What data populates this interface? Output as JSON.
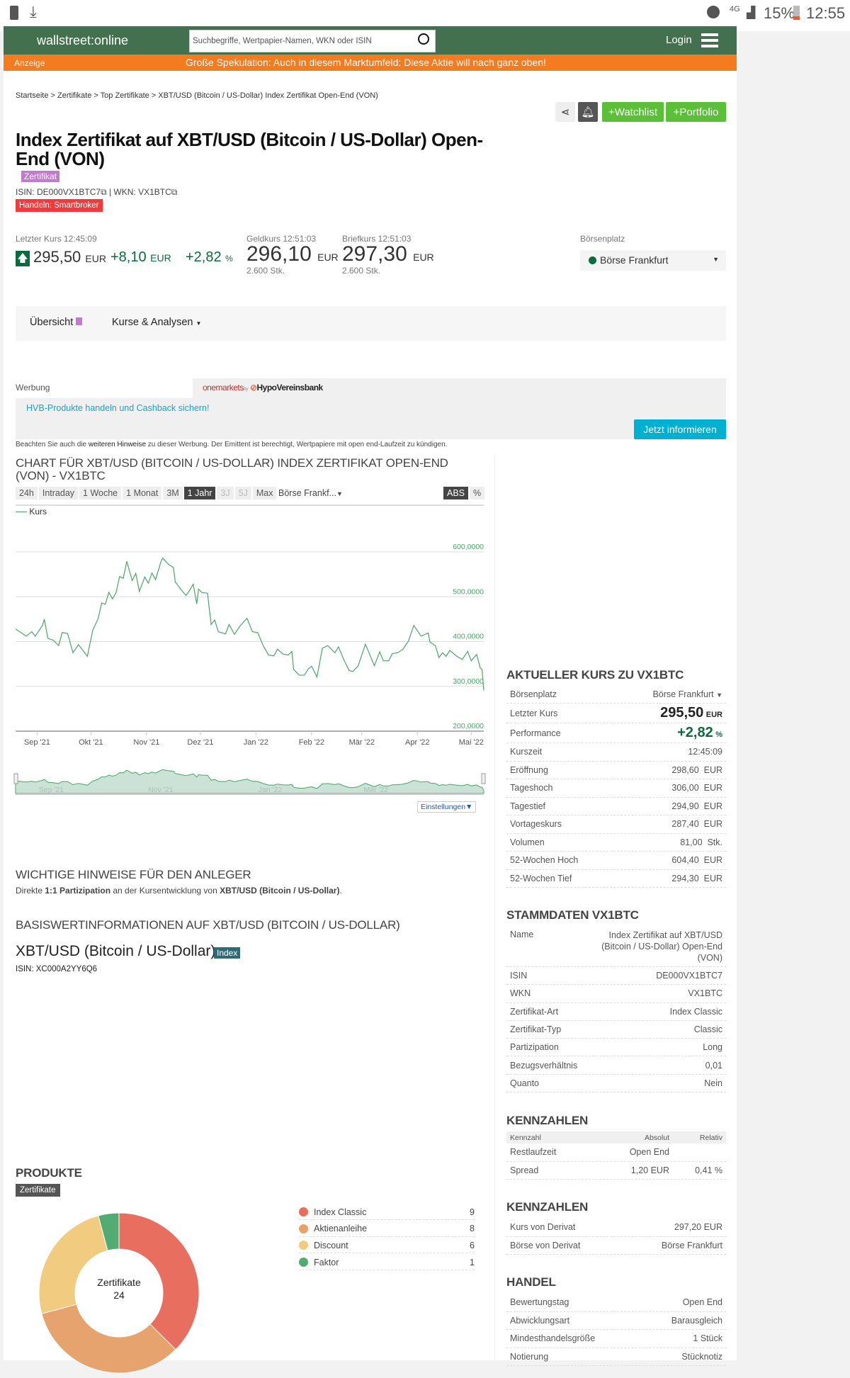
{
  "status_bar": {
    "network": "4G",
    "battery": "15%",
    "time": "12:55"
  },
  "header": {
    "logo": "wallstreet:online",
    "search_placeholder": "Suchbegriffe, Wertpapier-Namen, WKN oder ISIN",
    "login": "Login"
  },
  "promo": {
    "label": "Anzeige",
    "text": "Große Spekulation: Auch in diesem Marktumfeld: Diese Aktie will nach ganz oben!"
  },
  "breadcrumb": [
    "Startseite",
    "Zertifikate",
    "Top Zertifikate",
    "XBT/USD (Bitcoin / US-Dollar) Index Zertifikat Open-End (VON)"
  ],
  "actions": {
    "watchlist": "+Watchlist",
    "portfolio": "+Portfolio"
  },
  "title": "Index Zertifikat auf XBT/USD (Bitcoin / US-Dollar) Open-End (VON)",
  "type_badge": "Zertifikat",
  "isin_line": {
    "isin": "ISIN: DE000VX1BTC7",
    "wkn": "| WKN: VX1BTC"
  },
  "trade_badge": "Handeln: Smartbroker",
  "quote": {
    "last_label": "Letzter Kurs 12:45:09",
    "last": "295,50",
    "change": "+8,10",
    "change_pct": "+2,82",
    "currency": "EUR",
    "pct": "%",
    "bid_label": "Geldkurs 12:51:03",
    "bid": "296,10",
    "bid_size": "2.600 Stk.",
    "ask_label": "Briefkurs 12:51:03",
    "ask": "297,30",
    "ask_size": "2.600 Stk.",
    "exchange_label": "Börsenplatz",
    "exchange": "Börse Frankfurt"
  },
  "colors": {
    "header": "#43704f",
    "promo": "#f47b20",
    "positive": "#0a6b3c",
    "button_green": "#5cbf3a",
    "ad_button": "#00b0d0"
  },
  "nav": {
    "overview": "Übersicht",
    "analysis": "Kurse & Analysen"
  },
  "ad": {
    "label": "Werbung",
    "brand1": "onemarkets",
    "brand1_by": "by",
    "brand2": "HypoVereinsbank",
    "link": "HVB-Produkte handeln und Cashback sichern!",
    "button": "Jetzt informieren",
    "disclaimer_pre": "Beachten Sie auch die ",
    "disclaimer_link": "weiteren Hinweise",
    "disclaimer_post": " zu dieser Werbung. Der Emittent ist berechtigt, Wertpapiere mit open end-Laufzeit zu kündigen."
  },
  "chart_section": {
    "title": "CHART FÜR XBT/USD (BITCOIN / US-DOLLAR) INDEX ZERTIFIKAT OPEN-END (VON) - VX1BTC",
    "ranges": [
      "24h",
      "Intraday",
      "1 Woche",
      "1 Monat",
      "3M",
      "1 Jahr",
      "3J",
      "5J",
      "Max"
    ],
    "active_range": "1 Jahr",
    "exchange": "Börse Frankf...",
    "modes": [
      "ABS",
      "%"
    ],
    "settings": "Einstellungen"
  },
  "chart_data": {
    "type": "line",
    "legend": [
      "Kurs"
    ],
    "ylim": [
      200,
      600
    ],
    "yticks": [
      "600,0000",
      "500,0000",
      "400,0000",
      "300,0000",
      "200,0000"
    ],
    "ytick_values": [
      600,
      500,
      400,
      300,
      200
    ],
    "xlim": [
      "2021-08-20",
      "2022-05-08"
    ],
    "xticks": [
      [
        "2021-09-01",
        "Sep '21"
      ],
      [
        "2021-10-01",
        "Okt '21"
      ],
      [
        "2021-11-01",
        "Nov '21"
      ],
      [
        "2021-12-01",
        "Dez '21"
      ],
      [
        "2022-01-01",
        "Jan '22"
      ],
      [
        "2022-02-01",
        "Feb '22"
      ],
      [
        "2022-03-01",
        "Mär '22"
      ],
      [
        "2022-04-01",
        "Apr '22"
      ],
      [
        "2022-05-01",
        "Mai '22"
      ]
    ],
    "navigator_ticks": [
      [
        "2021-09-01",
        "Sep '21"
      ],
      [
        "2021-11-01",
        "Nov '21"
      ],
      [
        "2022-01-01",
        "Jan '22"
      ],
      [
        "2022-03-01",
        "Mär '22"
      ]
    ],
    "grid": true,
    "series": [
      {
        "name": "Kurs",
        "points": [
          [
            "2021-08-20",
            428
          ],
          [
            "2021-08-23",
            420
          ],
          [
            "2021-08-26",
            412
          ],
          [
            "2021-08-29",
            422
          ],
          [
            "2021-08-31",
            412
          ],
          [
            "2021-09-04",
            436
          ],
          [
            "2021-09-05",
            450
          ],
          [
            "2021-09-07",
            407
          ],
          [
            "2021-09-10",
            403
          ],
          [
            "2021-09-13",
            391
          ],
          [
            "2021-09-15",
            420
          ],
          [
            "2021-09-18",
            418
          ],
          [
            "2021-09-21",
            375
          ],
          [
            "2021-09-24",
            393
          ],
          [
            "2021-09-27",
            378
          ],
          [
            "2021-09-29",
            367
          ],
          [
            "2021-10-02",
            425
          ],
          [
            "2021-10-05",
            451
          ],
          [
            "2021-10-07",
            486
          ],
          [
            "2021-10-09",
            483
          ],
          [
            "2021-10-11",
            510
          ],
          [
            "2021-10-13",
            495
          ],
          [
            "2021-10-15",
            509
          ],
          [
            "2021-10-17",
            545
          ],
          [
            "2021-10-19",
            541
          ],
          [
            "2021-10-21",
            579
          ],
          [
            "2021-10-24",
            536
          ],
          [
            "2021-10-26",
            552
          ],
          [
            "2021-10-28",
            512
          ],
          [
            "2021-10-31",
            544
          ],
          [
            "2021-11-02",
            530
          ],
          [
            "2021-11-04",
            553
          ],
          [
            "2021-11-06",
            538
          ],
          [
            "2021-11-09",
            578
          ],
          [
            "2021-11-10",
            586
          ],
          [
            "2021-11-13",
            573
          ],
          [
            "2021-11-16",
            565
          ],
          [
            "2021-11-17",
            533
          ],
          [
            "2021-11-20",
            517
          ],
          [
            "2021-11-23",
            503
          ],
          [
            "2021-11-25",
            514
          ],
          [
            "2021-11-27",
            528
          ],
          [
            "2021-11-29",
            484
          ],
          [
            "2021-11-30",
            517
          ],
          [
            "2021-12-02",
            509
          ],
          [
            "2021-12-05",
            508
          ],
          [
            "2021-12-07",
            438
          ],
          [
            "2021-12-09",
            448
          ],
          [
            "2021-12-11",
            422
          ],
          [
            "2021-12-15",
            417
          ],
          [
            "2021-12-17",
            438
          ],
          [
            "2021-12-20",
            416
          ],
          [
            "2021-12-23",
            434
          ],
          [
            "2021-12-27",
            452
          ],
          [
            "2021-12-30",
            422
          ],
          [
            "2022-01-02",
            420
          ],
          [
            "2022-01-05",
            391
          ],
          [
            "2022-01-08",
            370
          ],
          [
            "2022-01-11",
            368
          ],
          [
            "2022-01-13",
            383
          ],
          [
            "2022-01-16",
            372
          ],
          [
            "2022-01-19",
            370
          ],
          [
            "2022-01-21",
            378
          ],
          [
            "2022-01-22",
            338
          ],
          [
            "2022-01-25",
            325
          ],
          [
            "2022-01-28",
            325
          ],
          [
            "2022-01-30",
            338
          ],
          [
            "2022-02-01",
            345
          ],
          [
            "2022-02-04",
            321
          ],
          [
            "2022-02-07",
            385
          ],
          [
            "2022-02-10",
            391
          ],
          [
            "2022-02-14",
            375
          ],
          [
            "2022-02-16",
            388
          ],
          [
            "2022-02-19",
            359
          ],
          [
            "2022-02-22",
            335
          ],
          [
            "2022-02-24",
            333
          ],
          [
            "2022-02-27",
            346
          ],
          [
            "2022-03-03",
            394
          ],
          [
            "2022-03-05",
            375
          ],
          [
            "2022-03-08",
            346
          ],
          [
            "2022-03-11",
            377
          ],
          [
            "2022-03-13",
            357
          ],
          [
            "2022-03-16",
            357
          ],
          [
            "2022-03-18",
            373
          ],
          [
            "2022-03-21",
            375
          ],
          [
            "2022-03-24",
            383
          ],
          [
            "2022-03-27",
            401
          ],
          [
            "2022-03-30",
            436
          ],
          [
            "2022-04-03",
            412
          ],
          [
            "2022-04-07",
            419
          ],
          [
            "2022-04-08",
            399
          ],
          [
            "2022-04-11",
            391
          ],
          [
            "2022-04-13",
            364
          ],
          [
            "2022-04-15",
            375
          ],
          [
            "2022-04-17",
            367
          ],
          [
            "2022-04-19",
            380
          ],
          [
            "2022-04-23",
            367
          ],
          [
            "2022-04-26",
            360
          ],
          [
            "2022-04-29",
            378
          ],
          [
            "2022-05-01",
            357
          ],
          [
            "2022-05-04",
            371
          ],
          [
            "2022-05-06",
            341
          ],
          [
            "2022-05-07",
            338
          ],
          [
            "2022-05-08",
            291
          ]
        ]
      }
    ]
  },
  "hints": {
    "title": "WICHTIGE HINWEISE FÜR DEN ANLEGER",
    "t1": "Direkte ",
    "b1": "1:1 Partizipation",
    "t2": " an der Kursentwicklung von ",
    "b2": "XBT/USD (Bitcoin / US-Dollar)",
    "t3": "."
  },
  "underlying": {
    "title": "BASISWERTINFORMATIONEN AUF XBT/USD (BITCOIN / US-DOLLAR)",
    "name": "XBT/USD (Bitcoin / US-Dollar)",
    "badge": "Index",
    "isin": "ISIN: XC000A2YY6Q6"
  },
  "products": {
    "title": "PRODUKTE",
    "tab": "Zertifikate",
    "center_label": "Zertifikate",
    "total": "24",
    "items": [
      {
        "label": "Index Classic",
        "count": 9,
        "color": "#e86f5f"
      },
      {
        "label": "Aktienanleihe",
        "count": 8,
        "color": "#e6a36d"
      },
      {
        "label": "Discount",
        "count": 6,
        "color": "#f1cc80"
      },
      {
        "label": "Faktor",
        "count": 1,
        "color": "#52ab72"
      }
    ]
  },
  "current": {
    "title": "AKTUELLER KURS ZU VX1BTC",
    "exchange_label": "Börsenplatz",
    "exchange": "Börse Frankfurt",
    "last_label": "Letzter Kurs",
    "last": "295,50",
    "last_cur": "EUR",
    "perf_label": "Performance",
    "perf": "+2,82",
    "perf_unit": "%",
    "rows": [
      [
        "Kurszeit",
        "12:45:09"
      ],
      [
        "Eröffnung",
        "298,60  EUR"
      ],
      [
        "Tageshoch",
        "306,00  EUR"
      ],
      [
        "Tagestief",
        "294,90  EUR"
      ],
      [
        "Vortageskurs",
        "287,40  EUR"
      ],
      [
        "Volumen",
        "81,00  Stk."
      ],
      [
        "52-Wochen Hoch",
        "604,40  EUR"
      ],
      [
        "52-Wochen Tief",
        "294,30  EUR"
      ]
    ]
  },
  "master": {
    "title": "STAMMDATEN VX1BTC",
    "name_label": "Name",
    "name": "Index Zertifikat auf XBT/USD (Bitcoin / US-Dollar) Open-End (VON)",
    "rows": [
      [
        "ISIN",
        "DE000VX1BTC7"
      ],
      [
        "WKN",
        "VX1BTC"
      ],
      [
        "Zertifikat-Art",
        "Index Classic"
      ],
      [
        "Zertifikat-Typ",
        "Classic"
      ],
      [
        "Partizipation",
        "Long"
      ],
      [
        "Bezugsverhältnis",
        "0,01"
      ],
      [
        "Quanto",
        "Nein"
      ]
    ]
  },
  "figures": {
    "title": "KENNZAHLEN",
    "headers": [
      "Kennzahl",
      "Absolut",
      "Relativ"
    ],
    "rows": [
      [
        "Restlaufzeit",
        "Open End",
        ""
      ],
      [
        "Spread",
        "1,20 EUR",
        "0,41 %"
      ]
    ]
  },
  "figures2": {
    "title": "KENNZAHLEN",
    "rows": [
      [
        "Kurs von Derivat",
        "297,20 EUR"
      ],
      [
        "Börse von Derivat",
        "Börse Frankfurt"
      ]
    ]
  },
  "trading": {
    "title": "HANDEL",
    "rows": [
      [
        "Bewertungstag",
        "Open End"
      ],
      [
        "Abwicklungsart",
        "Barausgleich"
      ],
      [
        "Mindesthandelsgröße",
        "1 Stück"
      ],
      [
        "Notierung",
        "Stücknotiz"
      ]
    ]
  }
}
